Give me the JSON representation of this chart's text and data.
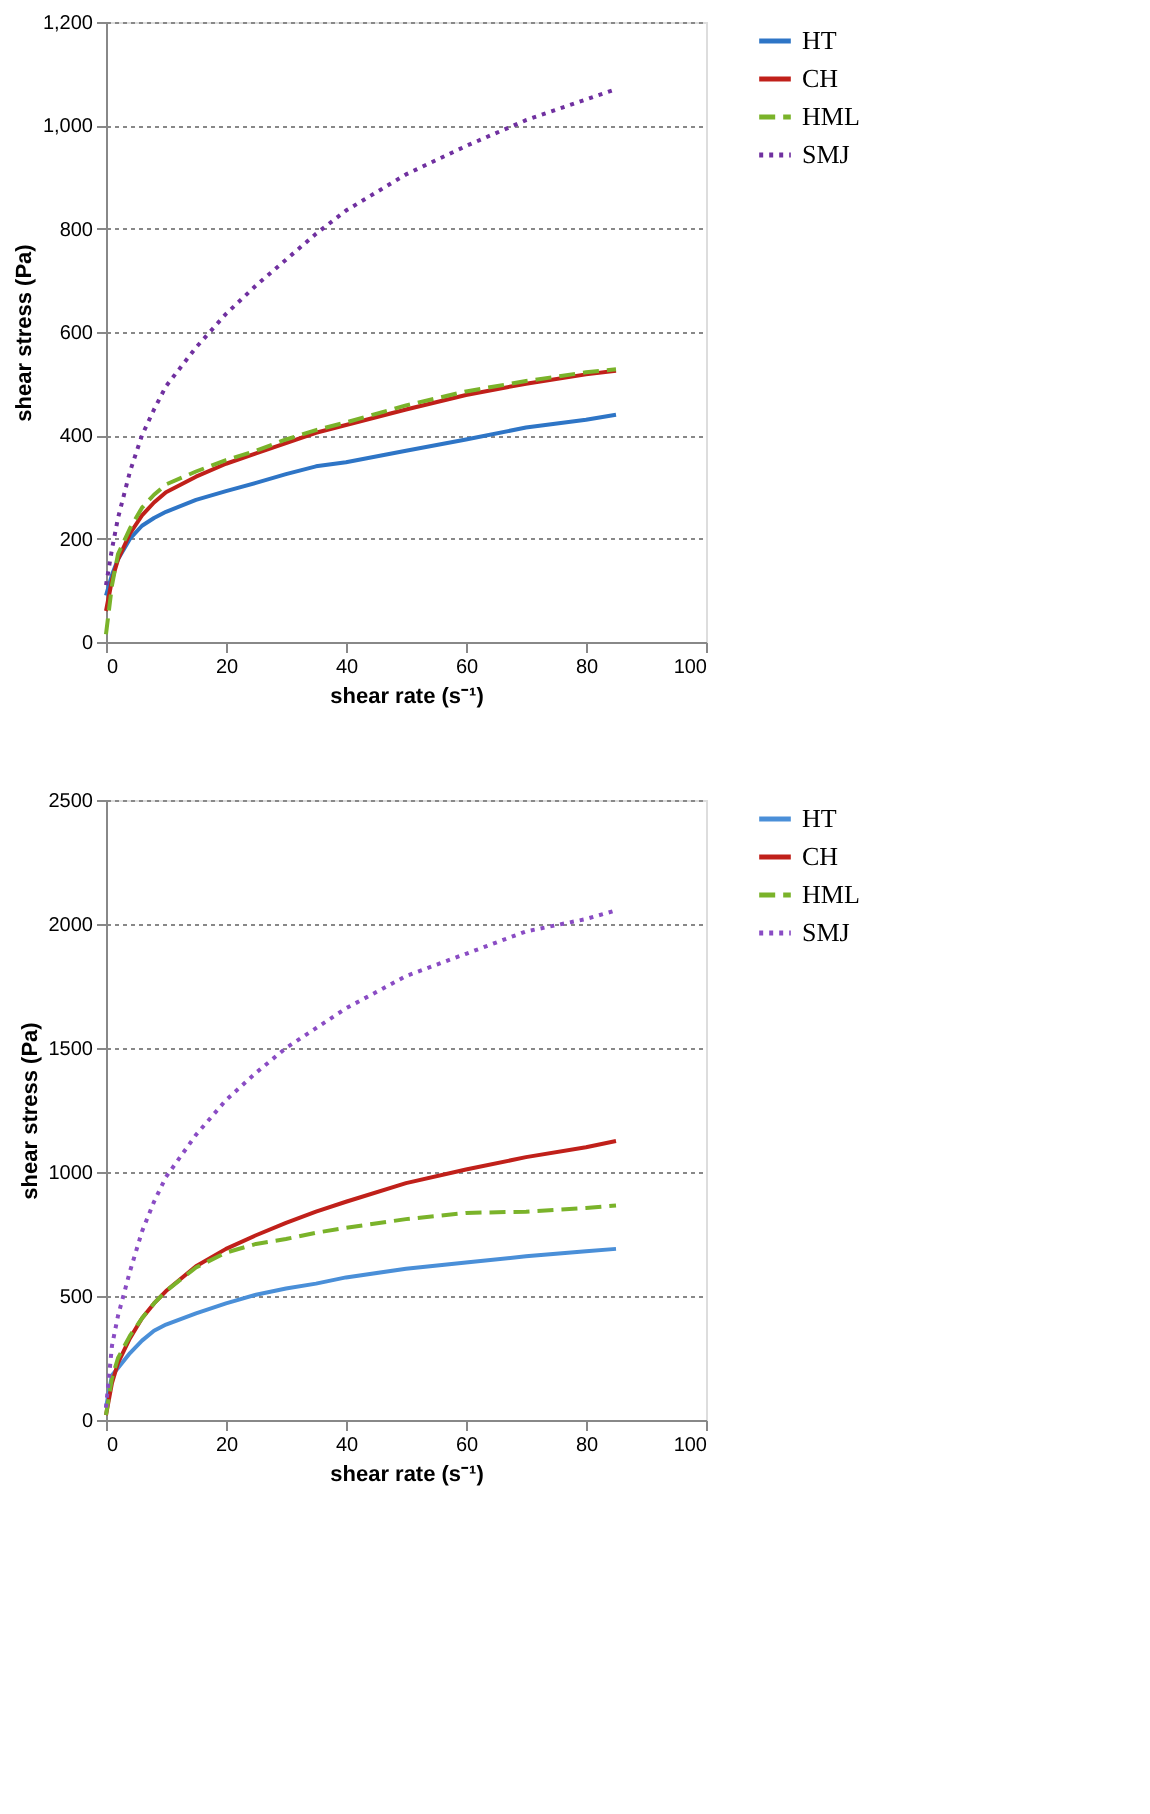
{
  "chart_data": [
    {
      "type": "line",
      "xlabel": "shear rate (s⁻¹)",
      "ylabel": "shear stress (Pa)",
      "xlim": [
        0,
        100
      ],
      "xticks": [
        0,
        20,
        40,
        60,
        80,
        100
      ],
      "ylim": [
        0,
        1200
      ],
      "yticks": [
        0,
        200,
        400,
        600,
        800,
        {
          "value": 1000,
          "label": "1,000"
        },
        {
          "value": 1200,
          "label": "1,200"
        }
      ],
      "grid": "y",
      "legend": "right",
      "x": [
        0,
        1,
        2,
        4,
        6,
        8,
        10,
        15,
        20,
        25,
        30,
        35,
        40,
        50,
        60,
        70,
        80,
        85
      ],
      "series": [
        {
          "name": "HT",
          "color": "#2e75c6",
          "line_style": "solid",
          "values": [
            90,
            130,
            160,
            200,
            225,
            240,
            252,
            275,
            292,
            308,
            325,
            340,
            348,
            370,
            392,
            415,
            430,
            440
          ]
        },
        {
          "name": "CH",
          "color": "#c0201a",
          "line_style": "solid",
          "values": [
            60,
            120,
            160,
            210,
            245,
            270,
            290,
            320,
            345,
            365,
            385,
            405,
            420,
            450,
            478,
            500,
            518,
            525
          ]
        },
        {
          "name": "HML",
          "color": "#7ab32a",
          "line_style": "dashed",
          "values": [
            15,
            110,
            170,
            220,
            260,
            285,
            305,
            330,
            352,
            370,
            392,
            410,
            425,
            458,
            485,
            505,
            522,
            528
          ]
        },
        {
          "name": "SMJ",
          "color": "#7030a0",
          "line_style": "dotted",
          "values": [
            110,
            180,
            240,
            330,
            400,
            450,
            495,
            570,
            635,
            690,
            740,
            790,
            835,
            905,
            960,
            1010,
            1050,
            1070
          ]
        }
      ]
    },
    {
      "type": "line",
      "xlabel": "shear rate (s⁻¹)",
      "ylabel": "shear stress (Pa)",
      "xlim": [
        0,
        100
      ],
      "xticks": [
        0,
        20,
        40,
        60,
        80,
        100
      ],
      "ylim": [
        0,
        2500
      ],
      "yticks": [
        0,
        500,
        1000,
        1500,
        2000,
        2500
      ],
      "grid": "y",
      "legend": "right",
      "x": [
        0,
        1,
        2,
        4,
        6,
        8,
        10,
        15,
        20,
        25,
        30,
        35,
        40,
        50,
        60,
        70,
        80,
        85
      ],
      "series": [
        {
          "name": "HT",
          "color": "#4a8fd8",
          "line_style": "solid",
          "values": [
            50,
            180,
            210,
            270,
            320,
            360,
            385,
            430,
            470,
            505,
            530,
            550,
            575,
            610,
            635,
            660,
            680,
            690
          ]
        },
        {
          "name": "CH",
          "color": "#c0201a",
          "line_style": "solid",
          "values": [
            20,
            150,
            230,
            330,
            410,
            470,
            520,
            620,
            690,
            745,
            795,
            840,
            880,
            955,
            1010,
            1060,
            1100,
            1125
          ]
        },
        {
          "name": "HML",
          "color": "#7ab32a",
          "line_style": "dashed",
          "values": [
            20,
            170,
            250,
            340,
            410,
            470,
            520,
            615,
            675,
            710,
            730,
            755,
            775,
            810,
            835,
            840,
            855,
            865
          ]
        },
        {
          "name": "SMJ",
          "color": "#8a4cc4",
          "line_style": "dotted",
          "values": [
            50,
            300,
            420,
            600,
            760,
            880,
            980,
            1150,
            1290,
            1400,
            1500,
            1580,
            1660,
            1790,
            1880,
            1970,
            2020,
            2055
          ]
        }
      ]
    }
  ]
}
